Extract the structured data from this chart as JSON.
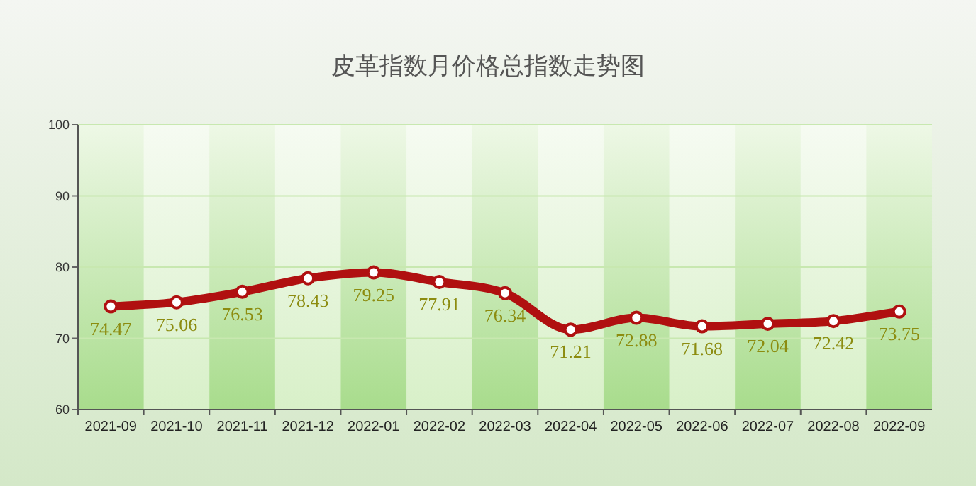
{
  "chart_data": {
    "type": "line",
    "title": "皮革指数月价格总指数走势图",
    "categories": [
      "2021-09",
      "2021-10",
      "2021-11",
      "2021-12",
      "2022-01",
      "2022-02",
      "2022-03",
      "2022-04",
      "2022-05",
      "2022-06",
      "2022-07",
      "2022-08",
      "2022-09"
    ],
    "series": [
      {
        "color": "#b01010",
        "values": [
          74.47,
          75.06,
          76.53,
          78.43,
          79.25,
          77.91,
          76.34,
          71.21,
          72.88,
          71.68,
          72.04,
          72.42,
          73.75
        ]
      }
    ],
    "ylim": [
      60,
      100
    ],
    "yticks": [
      60,
      70,
      80,
      90,
      100
    ],
    "grid": "y",
    "marker": "circle",
    "line_style": "solid",
    "data_labels": true
  }
}
